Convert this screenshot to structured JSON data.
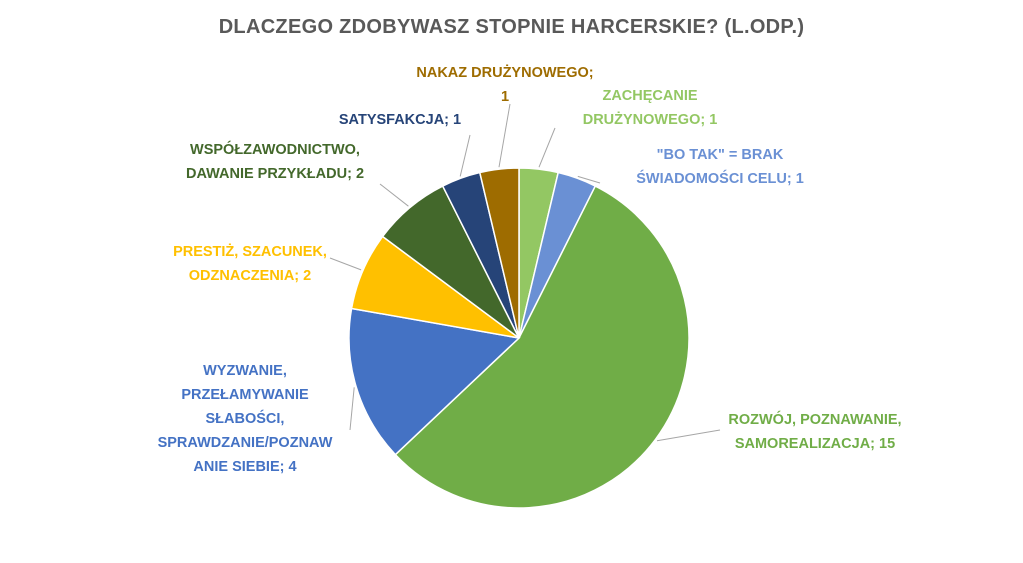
{
  "chart_data": {
    "type": "pie",
    "title": "DLACZEGO ZDOBYWASZ STOPNIE HARCERSKIE? (L.ODP.)",
    "slices": [
      {
        "label_lines": [
          "ZACHĘCANIE",
          "DRUŻYNOWEGO; 1"
        ],
        "value": 1,
        "color": "#93C763"
      },
      {
        "label_lines": [
          "\"BO TAK\" = BRAK",
          "ŚWIADOMOŚCI CELU; 1"
        ],
        "value": 1,
        "color": "#6A90D4"
      },
      {
        "label_lines": [
          "ROZWÓJ, POZNAWANIE,",
          "SAMOREALIZACJA; 15"
        ],
        "value": 15,
        "color": "#70AD47"
      },
      {
        "label_lines": [
          "WYZWANIE,",
          "PRZEŁAMYWANIE",
          "SŁABOŚCI,",
          "SPRAWDZANIE/POZNAW",
          "ANIE SIEBIE; 4"
        ],
        "value": 4,
        "color": "#4472C4"
      },
      {
        "label_lines": [
          "PRESTIŻ, SZACUNEK,",
          "ODZNACZENIA; 2"
        ],
        "value": 2,
        "color": "#FFC000"
      },
      {
        "label_lines": [
          "WSPÓŁZAWODNICTWO,",
          "DAWANIE PRZYKŁADU; 2"
        ],
        "value": 2,
        "color": "#43682B"
      },
      {
        "label_lines": [
          "SATYSFAKCJA; 1"
        ],
        "value": 1,
        "color": "#264478"
      },
      {
        "label_lines": [
          "NAKAZ DRUŻYNOWEGO;",
          "1"
        ],
        "value": 1,
        "color": "#9E6C00"
      }
    ],
    "label_colors": [
      "#93C763",
      "#6A90D4",
      "#70AD47",
      "#4472C4",
      "#FFC000",
      "#43682B",
      "#264478",
      "#9E6C00"
    ],
    "legend": "none"
  }
}
